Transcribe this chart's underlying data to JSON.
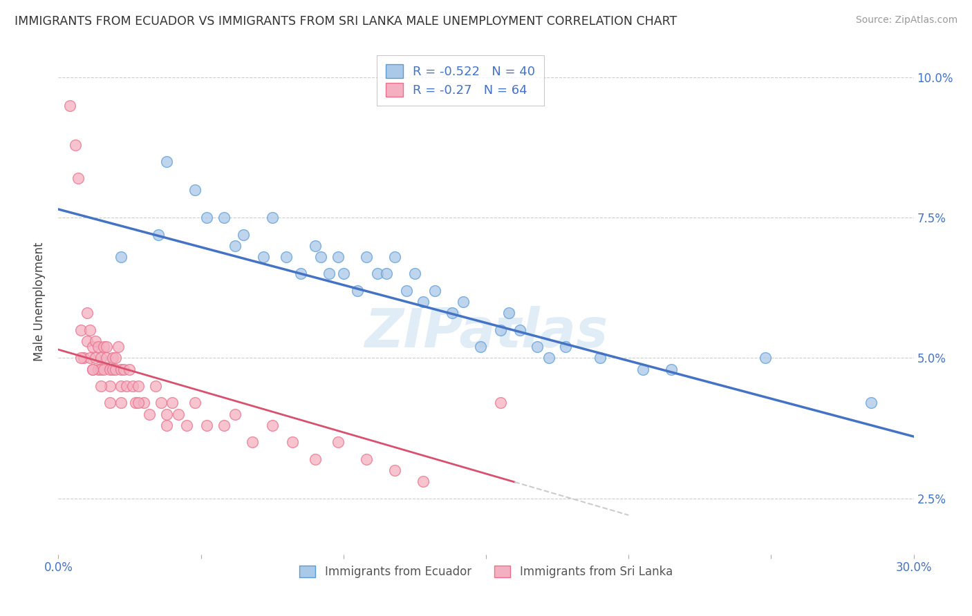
{
  "title": "IMMIGRANTS FROM ECUADOR VS IMMIGRANTS FROM SRI LANKA MALE UNEMPLOYMENT CORRELATION CHART",
  "source": "Source: ZipAtlas.com",
  "ylabel": "Male Unemployment",
  "xlim": [
    0.0,
    0.3
  ],
  "ylim": [
    0.015,
    0.105
  ],
  "x_ticks": [
    0.0,
    0.05,
    0.1,
    0.15,
    0.2,
    0.25,
    0.3
  ],
  "x_tick_labels": [
    "0.0%",
    "",
    "",
    "",
    "",
    "",
    "30.0%"
  ],
  "y_ticks": [
    0.025,
    0.05,
    0.075,
    0.1
  ],
  "y_tick_labels": [
    "2.5%",
    "5.0%",
    "7.5%",
    "10.0%"
  ],
  "ecuador_color": "#aac8e8",
  "ecuador_edge_color": "#5b9bd5",
  "srilanka_color": "#f4afc0",
  "srilanka_edge_color": "#e8708a",
  "ecuador_R": -0.522,
  "ecuador_N": 40,
  "srilanka_R": -0.27,
  "srilanka_N": 64,
  "ecuador_line_color": "#4472c4",
  "srilanka_line_color": "#d94f6e",
  "watermark": "ZIPatlas",
  "legend_label_ecuador": "Immigrants from Ecuador",
  "legend_label_srilanka": "Immigrants from Sri Lanka",
  "ecuador_x": [
    0.022,
    0.035,
    0.038,
    0.048,
    0.052,
    0.058,
    0.062,
    0.065,
    0.072,
    0.075,
    0.08,
    0.085,
    0.09,
    0.092,
    0.095,
    0.098,
    0.1,
    0.105,
    0.108,
    0.112,
    0.115,
    0.118,
    0.122,
    0.125,
    0.128,
    0.132,
    0.138,
    0.142,
    0.148,
    0.155,
    0.158,
    0.162,
    0.168,
    0.172,
    0.178,
    0.19,
    0.205,
    0.215,
    0.248,
    0.285
  ],
  "ecuador_y": [
    0.068,
    0.072,
    0.085,
    0.08,
    0.075,
    0.075,
    0.07,
    0.072,
    0.068,
    0.075,
    0.068,
    0.065,
    0.07,
    0.068,
    0.065,
    0.068,
    0.065,
    0.062,
    0.068,
    0.065,
    0.065,
    0.068,
    0.062,
    0.065,
    0.06,
    0.062,
    0.058,
    0.06,
    0.052,
    0.055,
    0.058,
    0.055,
    0.052,
    0.05,
    0.052,
    0.05,
    0.048,
    0.048,
    0.05,
    0.042
  ],
  "srilanka_x": [
    0.004,
    0.006,
    0.007,
    0.008,
    0.009,
    0.01,
    0.01,
    0.011,
    0.011,
    0.012,
    0.012,
    0.013,
    0.013,
    0.014,
    0.014,
    0.015,
    0.015,
    0.016,
    0.016,
    0.017,
    0.017,
    0.018,
    0.018,
    0.019,
    0.019,
    0.02,
    0.02,
    0.021,
    0.022,
    0.022,
    0.023,
    0.024,
    0.025,
    0.026,
    0.027,
    0.028,
    0.03,
    0.032,
    0.034,
    0.036,
    0.038,
    0.04,
    0.042,
    0.045,
    0.048,
    0.052,
    0.058,
    0.062,
    0.068,
    0.075,
    0.082,
    0.09,
    0.098,
    0.108,
    0.118,
    0.128,
    0.008,
    0.012,
    0.015,
    0.018,
    0.022,
    0.028,
    0.038,
    0.155
  ],
  "srilanka_y": [
    0.095,
    0.088,
    0.082,
    0.055,
    0.05,
    0.053,
    0.058,
    0.05,
    0.055,
    0.048,
    0.052,
    0.05,
    0.053,
    0.048,
    0.052,
    0.048,
    0.05,
    0.052,
    0.048,
    0.05,
    0.052,
    0.048,
    0.045,
    0.05,
    0.048,
    0.05,
    0.048,
    0.052,
    0.048,
    0.045,
    0.048,
    0.045,
    0.048,
    0.045,
    0.042,
    0.045,
    0.042,
    0.04,
    0.045,
    0.042,
    0.038,
    0.042,
    0.04,
    0.038,
    0.042,
    0.038,
    0.038,
    0.04,
    0.035,
    0.038,
    0.035,
    0.032,
    0.035,
    0.032,
    0.03,
    0.028,
    0.05,
    0.048,
    0.045,
    0.042,
    0.042,
    0.042,
    0.04,
    0.042
  ],
  "ecuador_line_start_x": 0.0,
  "ecuador_line_start_y": 0.0765,
  "ecuador_line_end_x": 0.3,
  "ecuador_line_end_y": 0.036,
  "srilanka_line_start_x": 0.0,
  "srilanka_line_start_y": 0.0515,
  "srilanka_line_end_x": 0.2,
  "srilanka_line_end_y": 0.022
}
